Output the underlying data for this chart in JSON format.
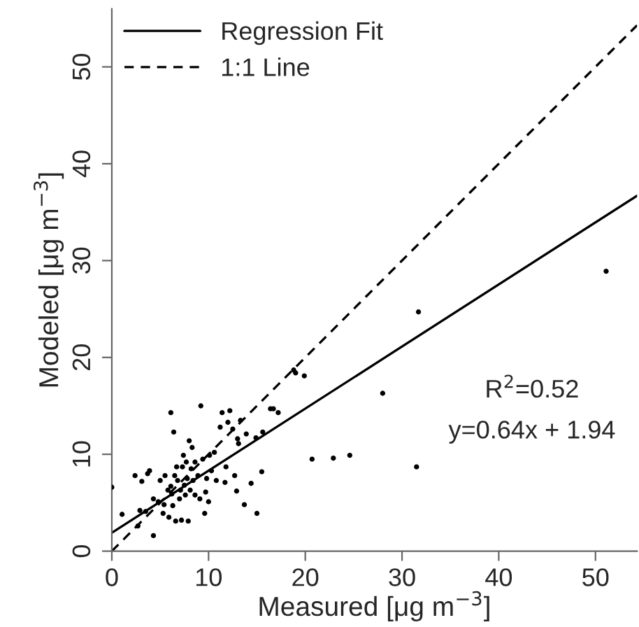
{
  "chart_data": {
    "type": "scatter",
    "xlabel": "Measured [μg m$^{−3}$]",
    "ylabel": "Modeled [μg m$^{−3}$]",
    "xlim": [
      0,
      54.3
    ],
    "ylim": [
      0,
      56
    ],
    "xticks": [
      0,
      10,
      20,
      30,
      40,
      50
    ],
    "yticks": [
      0,
      10,
      20,
      30,
      40,
      50
    ],
    "grid": false,
    "legend": "top left",
    "annotations": [
      "R$^{2}$=0.52",
      "y=0.64x + 1.94"
    ],
    "series": [
      {
        "marker": "circle",
        "color": "#000000",
        "x": [
          0,
          1.06,
          2.4,
          2.7,
          2.9,
          3.1,
          3.5,
          3.7,
          3.9,
          4.3,
          4.3,
          4.8,
          5.0,
          5.3,
          5.4,
          5.5,
          5.8,
          5.9,
          6.1,
          6.1,
          6.2,
          6.3,
          6.4,
          6.5,
          6.6,
          6.7,
          6.8,
          7.0,
          7.1,
          7.2,
          7.3,
          7.4,
          7.5,
          7.6,
          7.7,
          7.8,
          7.9,
          8.0,
          8.1,
          8.2,
          8.3,
          8.4,
          8.6,
          8.6,
          8.9,
          9.1,
          9.2,
          9.4,
          9.6,
          9.7,
          9.8,
          10.0,
          10.1,
          10.3,
          10.6,
          10.8,
          11.2,
          11.4,
          11.7,
          11.8,
          12.0,
          12.2,
          12.5,
          12.7,
          12.9,
          13.0,
          13.1,
          13.3,
          13.7,
          13.9,
          14.4,
          14.9,
          15.0,
          15.5,
          15.6,
          16.4,
          16.7,
          17.2,
          18.8,
          19.0,
          19.9,
          20.7,
          22.9,
          24.6,
          28.0,
          31.5,
          31.7,
          51.1
        ],
        "values": [
          6.6,
          3.8,
          7.8,
          2.6,
          4.2,
          7.2,
          4.1,
          8.0,
          8.3,
          1.6,
          5.4,
          5.1,
          7.3,
          3.9,
          4.8,
          7.8,
          6.3,
          3.5,
          14.3,
          6.7,
          5.9,
          4.7,
          12.3,
          7.8,
          3.1,
          8.7,
          7.3,
          5.4,
          6.3,
          3.2,
          8.7,
          9.9,
          6.8,
          5.8,
          9.2,
          7.5,
          3.1,
          11.4,
          6.3,
          8.5,
          10.7,
          7.3,
          5.8,
          9.2,
          7.8,
          5.4,
          15.0,
          9.5,
          3.9,
          6.1,
          7.5,
          5.1,
          9.9,
          8.3,
          10.2,
          7.3,
          12.8,
          14.3,
          7.1,
          8.7,
          13.3,
          14.5,
          12.6,
          7.8,
          6.2,
          11.6,
          11.1,
          13.5,
          4.8,
          12.1,
          7.0,
          11.7,
          3.9,
          8.2,
          12.3,
          14.7,
          14.7,
          14.3,
          18.7,
          18.4,
          18.1,
          9.5,
          9.6,
          9.9,
          16.3,
          8.7,
          24.7,
          28.9
        ]
      },
      {
        "type": "line",
        "name": "Regression Fit",
        "color": "#000000",
        "line_style": "solid",
        "marker": "none",
        "x": [
          0,
          54.3
        ],
        "values": [
          1.9,
          36.7
        ]
      },
      {
        "type": "line",
        "name": "1:1 Line",
        "color": "#000000",
        "line_style": "dashed",
        "marker": "none",
        "x": [
          0,
          54.3
        ],
        "values": [
          0,
          54.3
        ]
      }
    ]
  }
}
